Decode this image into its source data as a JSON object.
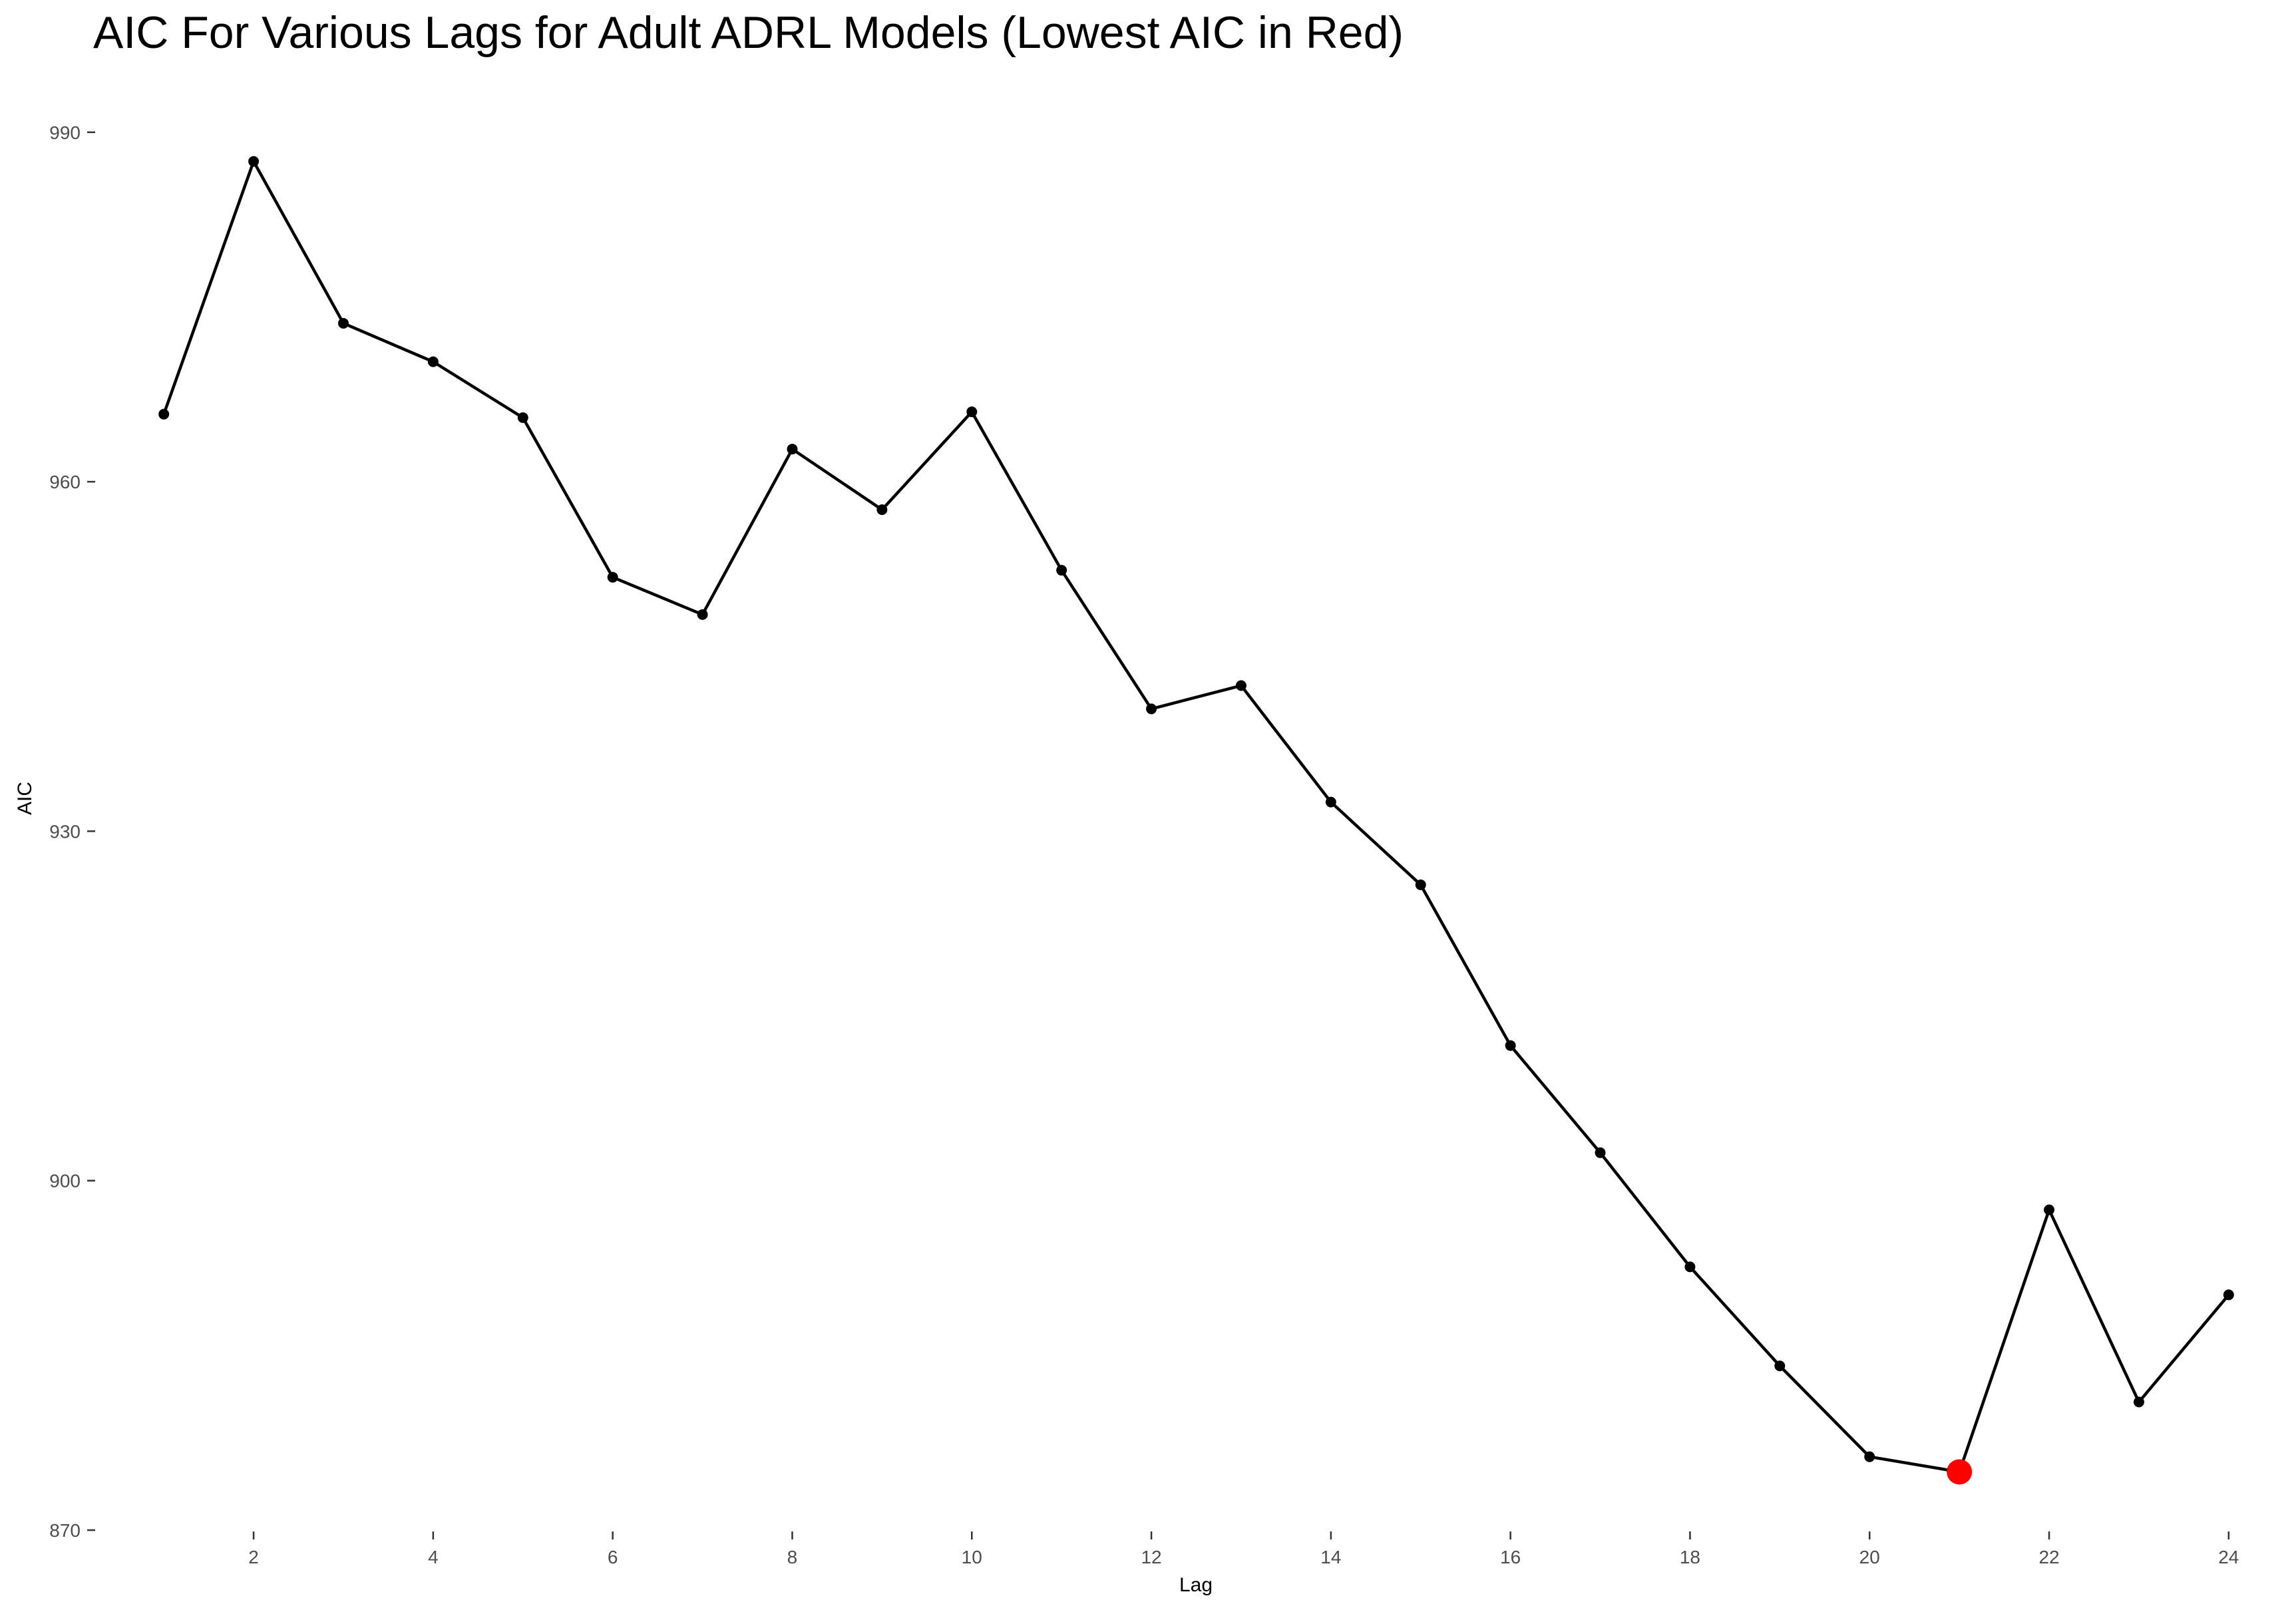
{
  "chart_data": {
    "type": "line",
    "title": "AIC For Various Lags for Adult ADRL Models (Lowest AIC in Red)",
    "xlabel": "Lag",
    "ylabel": "AIC",
    "x": [
      1,
      2,
      3,
      4,
      5,
      6,
      7,
      8,
      9,
      10,
      11,
      12,
      13,
      14,
      15,
      16,
      17,
      18,
      19,
      20,
      21,
      22,
      23,
      24
    ],
    "series": [
      {
        "values": [
          965.8,
          987.5,
          973.6,
          970.3,
          965.5,
          951.8,
          948.6,
          962.8,
          957.6,
          966.0,
          952.4,
          940.5,
          942.5,
          932.5,
          925.4,
          911.6,
          902.4,
          892.6,
          884.1,
          876.3,
          875.0,
          897.5,
          881.0,
          890.2
        ]
      }
    ],
    "highlight": {
      "x": 21,
      "y": 875.0,
      "color": "#ff0000"
    },
    "xlim": [
      0.25,
      24.75
    ],
    "ylim": [
      870,
      994.5
    ],
    "xticks": [
      2,
      4,
      6,
      8,
      10,
      12,
      14,
      16,
      18,
      20,
      22,
      24
    ],
    "yticks": [
      870,
      900,
      930,
      960,
      990
    ],
    "grid": false,
    "colors": {
      "line": "#000000",
      "point": "#000000",
      "highlight": "#ff0000",
      "tick_label": "#4d4d4d"
    }
  }
}
